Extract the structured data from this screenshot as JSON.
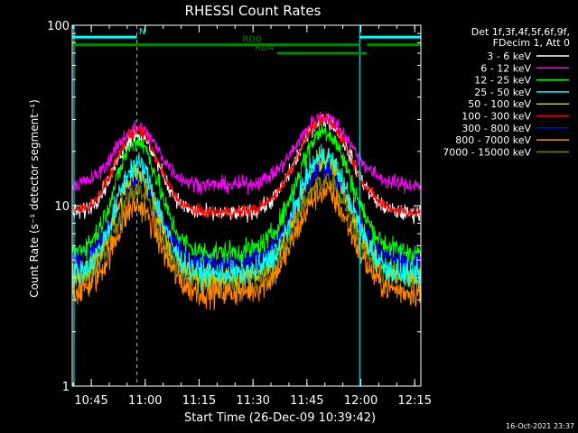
{
  "chart_data": {
    "type": "line",
    "title": "RHESSI Count Rates",
    "xlabel": "Start Time (26-Dec-09 10:39:42)",
    "ylabel": "Count Rate (s⁻¹ detector segment⁻¹)",
    "xlim_minutes_after_1039_42": [
      0,
      97
    ],
    "ylim": [
      1,
      100
    ],
    "y_scale": "log",
    "x_ticks": [
      "10:45",
      "11:00",
      "11:15",
      "11:30",
      "11:45",
      "12:00",
      "12:15"
    ],
    "y_ticks": [
      "1",
      "10",
      "100"
    ],
    "legend_header": [
      "Det 1f,3f,4f,5f,6f,9f,",
      "FDecim 1, Att 0"
    ],
    "legend_position": "right",
    "series": [
      {
        "name": "3 - 6 keV",
        "color": "#ffffff",
        "peak1": 25,
        "peak2": 30,
        "base": 9,
        "noise": 0.05
      },
      {
        "name": "6 - 12 keV",
        "color": "#ff00ff",
        "peak1": 27,
        "peak2": 31,
        "base": 13,
        "noise": 0.05
      },
      {
        "name": "12 - 25 keV",
        "color": "#00ff00",
        "peak1": 23,
        "peak2": 26,
        "base": 5.5,
        "noise": 0.07
      },
      {
        "name": "25 - 50 keV",
        "color": "#00ffff",
        "peak1": 17,
        "peak2": 19,
        "base": 4.2,
        "noise": 0.08
      },
      {
        "name": "50 - 100 keV",
        "color": "#cccc00",
        "peak1": 15,
        "peak2": 18,
        "base": 4.0,
        "noise": 0.08
      },
      {
        "name": "100 - 300 keV",
        "color": "#ff0000",
        "peak1": 26,
        "peak2": 30,
        "base": 9.2,
        "noise": 0.04
      },
      {
        "name": "300 - 800 keV",
        "color": "#0000ff",
        "peak1": 14,
        "peak2": 16,
        "base": 5.0,
        "noise": 0.07
      },
      {
        "name": "800 - 7000 keV",
        "color": "#ff8800",
        "peak1": 10,
        "peak2": 12,
        "base": 3.3,
        "noise": 0.09
      },
      {
        "name": "7000 - 15000 keV",
        "color": "#808000",
        "peak1": 12,
        "peak2": 14,
        "base": 3.8,
        "noise": 0.08
      }
    ],
    "annotations": [
      {
        "label": "N",
        "color": "#00ffff",
        "x_start": 0,
        "x_end": 18,
        "y": 86
      },
      {
        "label": "",
        "color": "#00ffff",
        "x_start": 80,
        "x_end": 97,
        "y": 86
      },
      {
        "label": "RD0",
        "color": "#008800",
        "x_start": 0,
        "x_end": 80,
        "y": 78
      },
      {
        "label": "",
        "color": "#008800",
        "x_start": 82,
        "x_end": 97,
        "y": 78
      },
      {
        "label": "RD4",
        "color": "#008800",
        "x_start": 57,
        "x_end": 82,
        "y": 70
      }
    ],
    "vlines": [
      {
        "x": 0.5,
        "color": "#00ffff",
        "dashed": false
      },
      {
        "x": 18,
        "color": "#00ffff",
        "dashed": true
      },
      {
        "x": 80,
        "color": "#00ffff",
        "dashed": false
      },
      {
        "x": 97,
        "color": "#00ffff",
        "dashed": true
      }
    ]
  },
  "footer": {
    "timestamp": "16-Oct-2021 23:37"
  }
}
